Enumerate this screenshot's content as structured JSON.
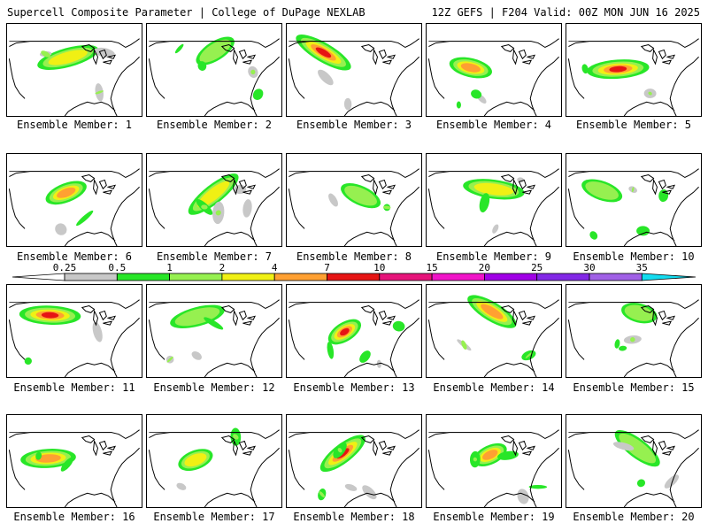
{
  "header": {
    "left_title": "Supercell Composite Parameter | College of DuPage NEXLAB",
    "right_title": "12Z GEFS | F204 Valid: 00Z MON JUN 16 2025"
  },
  "member_label_prefix": "Ensemble Member: ",
  "members": [
    1,
    2,
    3,
    4,
    5,
    6,
    7,
    8,
    9,
    10,
    11,
    12,
    13,
    14,
    15,
    16,
    17,
    18,
    19,
    20
  ],
  "colorbar": {
    "thresholds": [
      "0.25",
      "0.5",
      "1",
      "2",
      "4",
      "7",
      "10",
      "15",
      "20",
      "25",
      "30",
      "35"
    ],
    "colors": [
      "#c8c8c8",
      "#28e628",
      "#96f050",
      "#f0f014",
      "#ffa032",
      "#e61414",
      "#e6147a",
      "#f014c8",
      "#a000e6",
      "#8228e6",
      "#a060e6",
      "#14dcf0"
    ]
  },
  "colors": {
    "light": "#c8c8c8",
    "green": "#28e628",
    "yellowgreen": "#96f050",
    "yellow": "#f0f014",
    "orange": "#ffa032",
    "red": "#e61414",
    "magenta": "#e6147a"
  }
}
